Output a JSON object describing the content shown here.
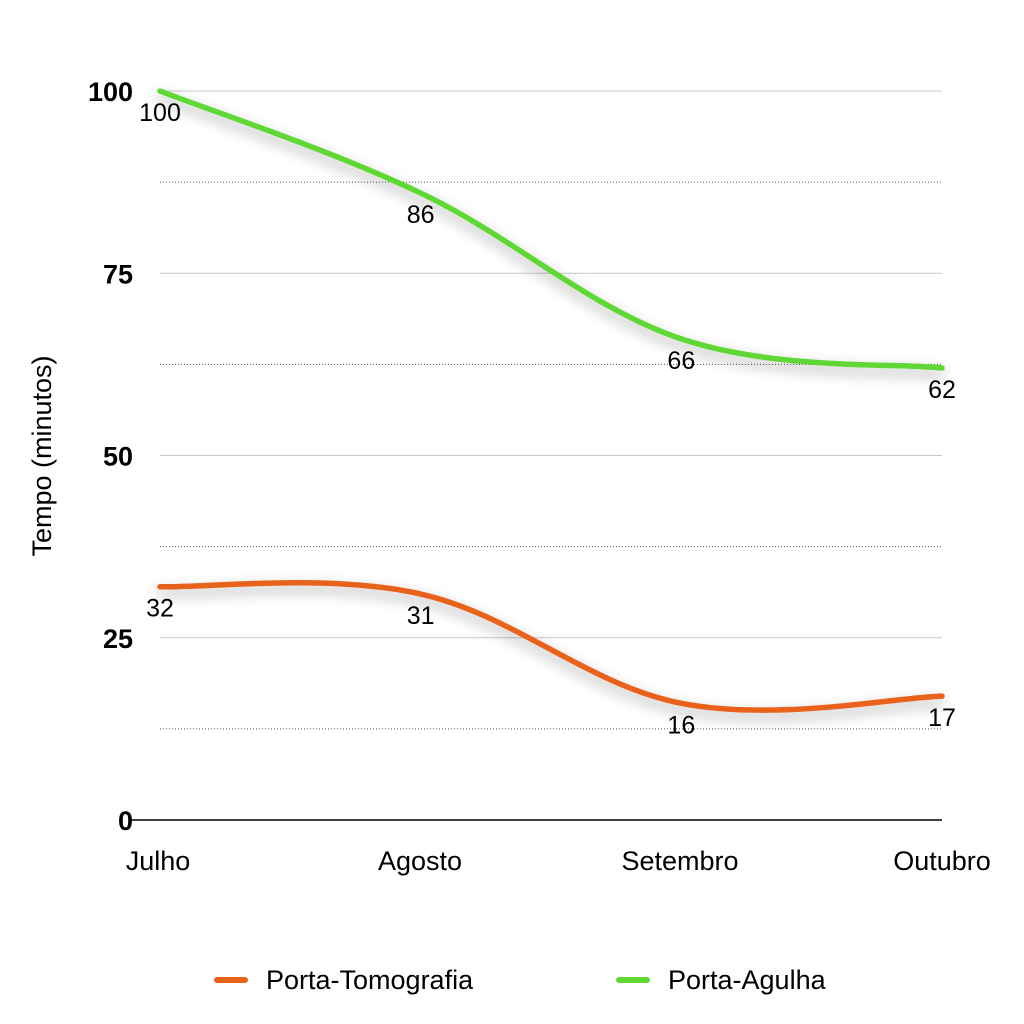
{
  "chart_data": {
    "type": "line",
    "categories": [
      "Julho",
      "Agosto",
      "Setembro",
      "Outubro"
    ],
    "series": [
      {
        "name": "Porta-Tomografia",
        "values": [
          32,
          31,
          16,
          17
        ],
        "color": "#e8621a"
      },
      {
        "name": "Porta-Agulha",
        "values": [
          100,
          86,
          66,
          62
        ],
        "color": "#5fd834"
      }
    ],
    "ylabel": "Tempo (minutos)",
    "xlabel": "",
    "ylim": [
      0,
      100
    ],
    "yticks": [
      0,
      25,
      50,
      75,
      100
    ],
    "grid": true,
    "legend_position": "bottom"
  },
  "legend": {
    "items": [
      {
        "label": "Porta-Tomografia",
        "color": "#e8621a"
      },
      {
        "label": "Porta-Agulha",
        "color": "#5fd834"
      }
    ]
  }
}
